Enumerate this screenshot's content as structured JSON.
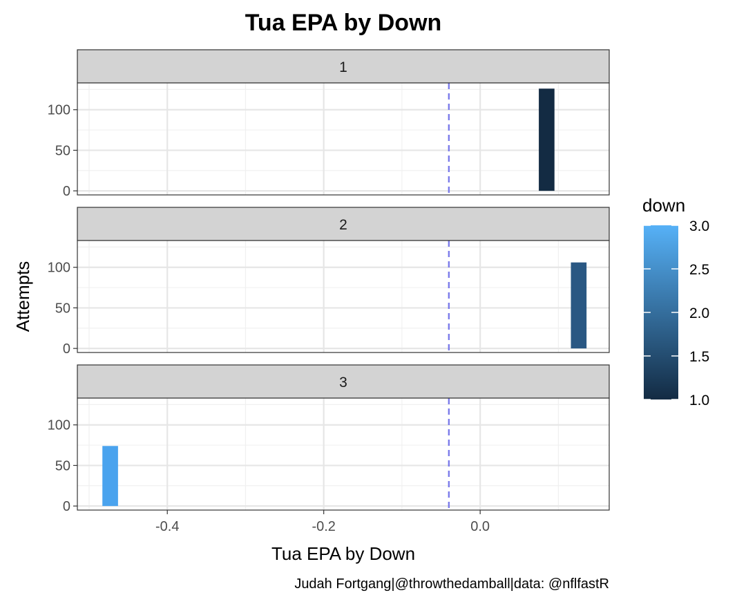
{
  "chart_data": {
    "type": "bar",
    "title": "Tua EPA by Down",
    "xlabel": "Tua EPA by Down",
    "ylabel": "Attempts",
    "caption": "Judah Fortgang|@throwthedamball|data: @nflfastR",
    "xlim": [
      -0.515,
      0.165
    ],
    "ylim": [
      -5,
      133
    ],
    "x_ticks": [
      -0.4,
      -0.2,
      0.0
    ],
    "x_tick_labels": [
      "-0.4",
      "-0.2",
      "0.0"
    ],
    "y_ticks": [
      0,
      50,
      100
    ],
    "y_tick_labels": [
      "0",
      "50",
      "100"
    ],
    "reference_line_x": -0.04,
    "bar_width": 0.02,
    "grid": true,
    "facets": [
      {
        "label": "1",
        "down": 1,
        "x": 0.085,
        "value": 126,
        "color": "#132B43"
      },
      {
        "label": "2",
        "down": 2,
        "x": 0.126,
        "value": 106,
        "color": "#2A5883"
      },
      {
        "label": "3",
        "down": 3,
        "x": -0.473,
        "value": 74,
        "color": "#4AA3EE"
      }
    ],
    "legend": {
      "title": "down",
      "position": "right",
      "range": [
        1.0,
        3.0
      ],
      "low_color": "#132B43",
      "high_color": "#56B1F7",
      "ticks": [
        1.0,
        1.5,
        2.0,
        2.5,
        3.0
      ],
      "tick_labels": [
        "1.0",
        "1.5",
        "2.0",
        "2.5",
        "3.0"
      ]
    }
  }
}
